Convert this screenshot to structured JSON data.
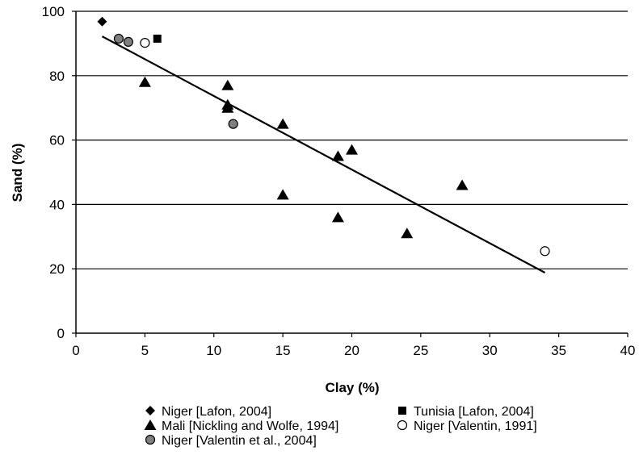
{
  "chart_data": {
    "type": "scatter",
    "xlabel": "Clay (%)",
    "ylabel": "Sand (%)",
    "xlim": [
      0,
      40
    ],
    "ylim": [
      0,
      100
    ],
    "xticks": [
      0,
      5,
      10,
      15,
      20,
      25,
      30,
      35,
      40
    ],
    "yticks": [
      0,
      20,
      40,
      60,
      80,
      100
    ],
    "grid": "horizontal",
    "legend_position": "bottom",
    "series": [
      {
        "name": "Niger [Lafon, 2004]",
        "marker": "diamond",
        "color": "#000000",
        "points": [
          [
            1.9,
            96.8
          ]
        ]
      },
      {
        "name": "Tunisia [Lafon, 2004]",
        "marker": "square",
        "color": "#000000",
        "points": [
          [
            5.9,
            91.5
          ]
        ]
      },
      {
        "name": "Mali [Nickling and Wolfe, 1994]",
        "marker": "triangle",
        "color": "#000000",
        "points": [
          [
            5,
            78
          ],
          [
            11,
            77
          ],
          [
            11,
            71
          ],
          [
            11,
            70
          ],
          [
            15,
            65
          ],
          [
            15,
            43
          ],
          [
            19,
            55
          ],
          [
            19,
            36
          ],
          [
            20,
            57
          ],
          [
            24,
            31
          ],
          [
            28,
            46
          ]
        ]
      },
      {
        "name": "Niger [Valentin, 1991]",
        "marker": "circle-open",
        "color": "#ffffff",
        "points": [
          [
            5,
            90.2
          ],
          [
            34,
            25.5
          ]
        ]
      },
      {
        "name": "Niger [Valentin et al., 2004]",
        "marker": "circle-gray",
        "color": "#808080",
        "points": [
          [
            3.1,
            91.5
          ],
          [
            3.8,
            90.5
          ],
          [
            11.4,
            65
          ]
        ]
      }
    ],
    "trendline": {
      "x1": 1.9,
      "y1": 92.2,
      "x2": 34,
      "y2": 18.8
    }
  }
}
